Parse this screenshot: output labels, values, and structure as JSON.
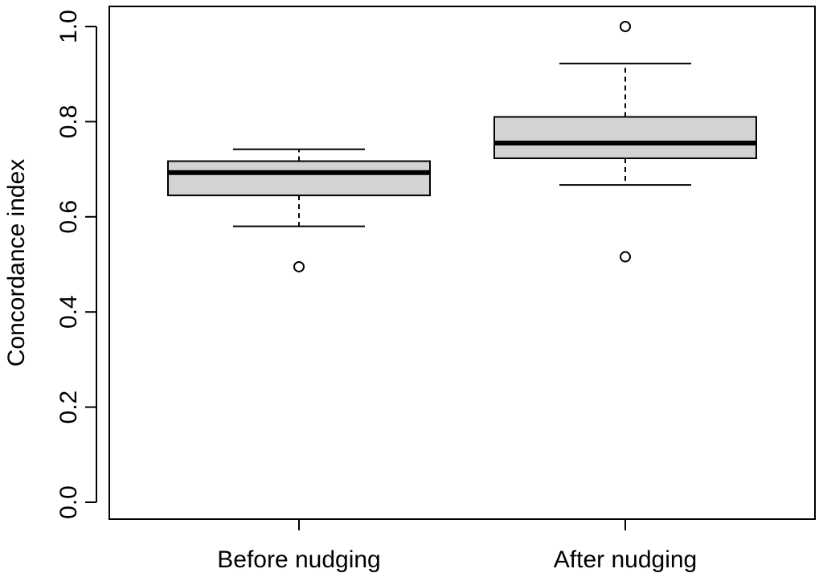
{
  "chart_data": {
    "type": "box",
    "title": "",
    "xlabel": "",
    "ylabel": "Concordance index",
    "ylim": [
      0.0,
      1.0
    ],
    "yticks": [
      "0.0",
      "0.2",
      "0.4",
      "0.6",
      "0.8",
      "1.0"
    ],
    "categories": [
      "Before nudging",
      "After nudging"
    ],
    "box_fill": "#d3d3d3",
    "line_color": "#000000",
    "boxes": [
      {
        "name": "Before nudging",
        "whisker_low": 0.58,
        "q1": 0.645,
        "median": 0.693,
        "q3": 0.717,
        "whisker_high": 0.742,
        "outliers": [
          0.495
        ]
      },
      {
        "name": "After nudging",
        "whisker_low": 0.667,
        "q1": 0.723,
        "median": 0.755,
        "q3": 0.81,
        "whisker_high": 0.922,
        "outliers": [
          0.516,
          1.0
        ]
      }
    ]
  }
}
